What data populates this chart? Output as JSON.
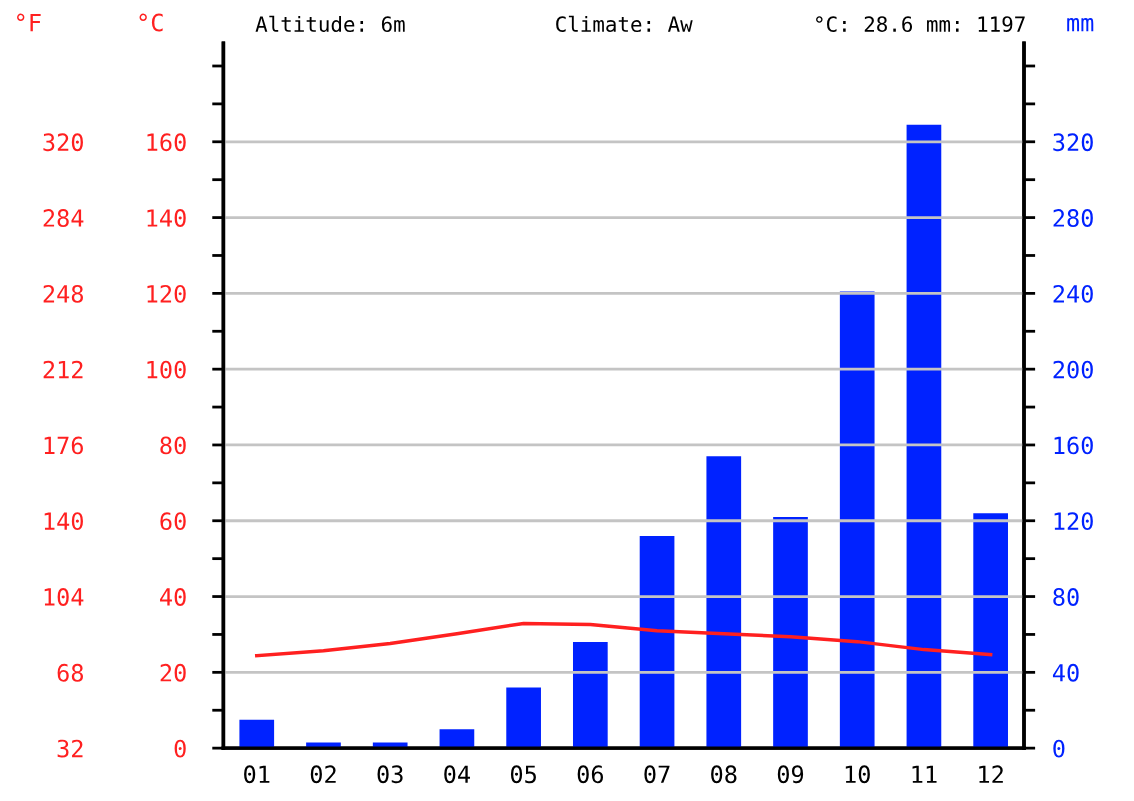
{
  "chart_data": {
    "type": "bar",
    "title": "Climate: Aw",
    "annotations": [
      "Altitude: 6m",
      "°C: 28.6 mm: 1197"
    ],
    "ylabel": "°C",
    "y2label": "mm",
    "y3label": "°F",
    "categories": [
      "01",
      "02",
      "03",
      "04",
      "05",
      "06",
      "07",
      "08",
      "09",
      "10",
      "11",
      "12"
    ],
    "series": [
      {
        "axis": "y2",
        "color": "#0022ff",
        "values": [
          15,
          3,
          3,
          10,
          32,
          56,
          112,
          154,
          122,
          241,
          329,
          124
        ]
      },
      {
        "type": "line",
        "axis": "y",
        "color": "#ff2020",
        "values": [
          24.4,
          25.7,
          27.6,
          30.2,
          32.9,
          32.6,
          31.0,
          30.2,
          29.4,
          28.1,
          26.0,
          24.7
        ]
      }
    ],
    "ylim": [
      0,
      186
    ],
    "yticks": [
      0,
      {
        "value": 10,
        "label": null
      },
      20,
      {
        "value": 30,
        "label": null
      },
      40,
      {
        "value": 50,
        "label": null
      },
      60,
      {
        "value": 70,
        "label": null
      },
      80,
      {
        "value": 90,
        "label": null
      },
      100,
      {
        "value": 110,
        "label": null
      },
      120,
      {
        "value": 130,
        "label": null
      },
      140,
      {
        "value": 150,
        "label": null
      },
      160,
      {
        "value": 170,
        "label": null
      },
      {
        "value": 180,
        "label": null
      }
    ],
    "y2lim": [
      0,
      372
    ],
    "y2ticks": [
      0,
      {
        "value": 20,
        "label": null
      },
      40,
      {
        "value": 60,
        "label": null
      },
      80,
      {
        "value": 100,
        "label": null
      },
      120,
      {
        "value": 140,
        "label": null
      },
      160,
      {
        "value": 180,
        "label": null
      },
      200,
      {
        "value": 220,
        "label": null
      },
      240,
      {
        "value": 260,
        "label": null
      },
      280,
      {
        "value": 300,
        "label": null
      },
      320,
      {
        "value": 340,
        "label": null
      },
      {
        "value": 360,
        "label": null
      }
    ],
    "y3lim": [
      32,
      366.8
    ],
    "y3ticks": [
      32,
      68,
      104,
      140,
      176,
      212,
      248,
      284,
      320
    ],
    "grid": "y",
    "line_style": "solid",
    "marker": "none",
    "legend": false
  }
}
